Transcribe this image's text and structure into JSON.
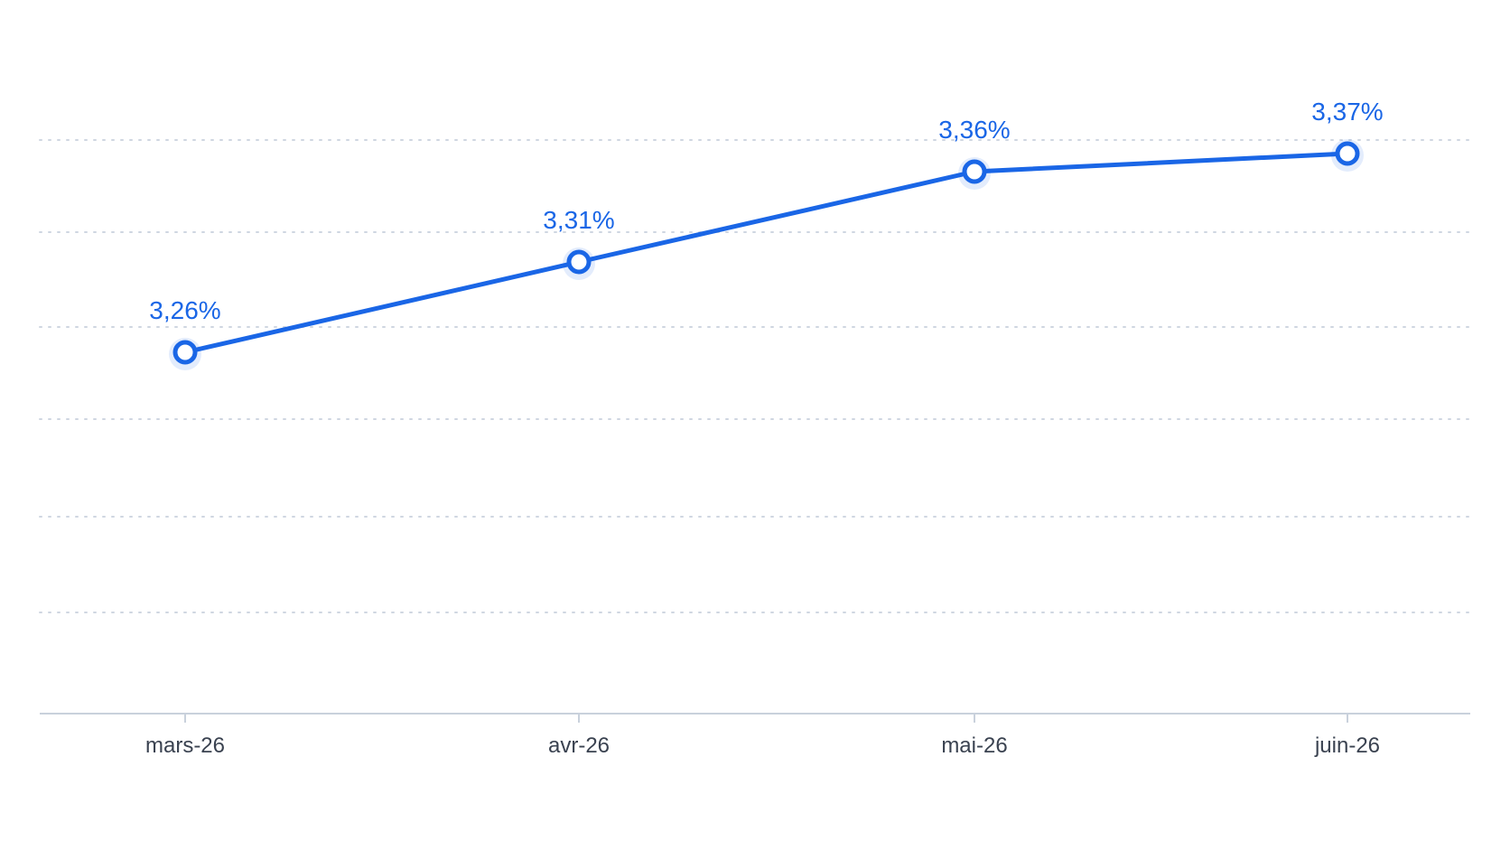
{
  "chart_data": {
    "type": "line",
    "categories": [
      "mars-26",
      "avr-26",
      "mai-26",
      "juin-26"
    ],
    "values": [
      3.26,
      3.31,
      3.36,
      3.37
    ],
    "data_labels": [
      "3,26%",
      "3,31%",
      "3,36%",
      "3,37%"
    ],
    "ylim": [
      3.06,
      3.42
    ],
    "grid": true,
    "legend": "none",
    "title": "",
    "xlabel": "",
    "ylabel": ""
  },
  "colors": {
    "series": "#1a66e6",
    "grid": "#cfd6e1",
    "axis": "#c9d1dc",
    "tick_text": "#3a4250"
  }
}
